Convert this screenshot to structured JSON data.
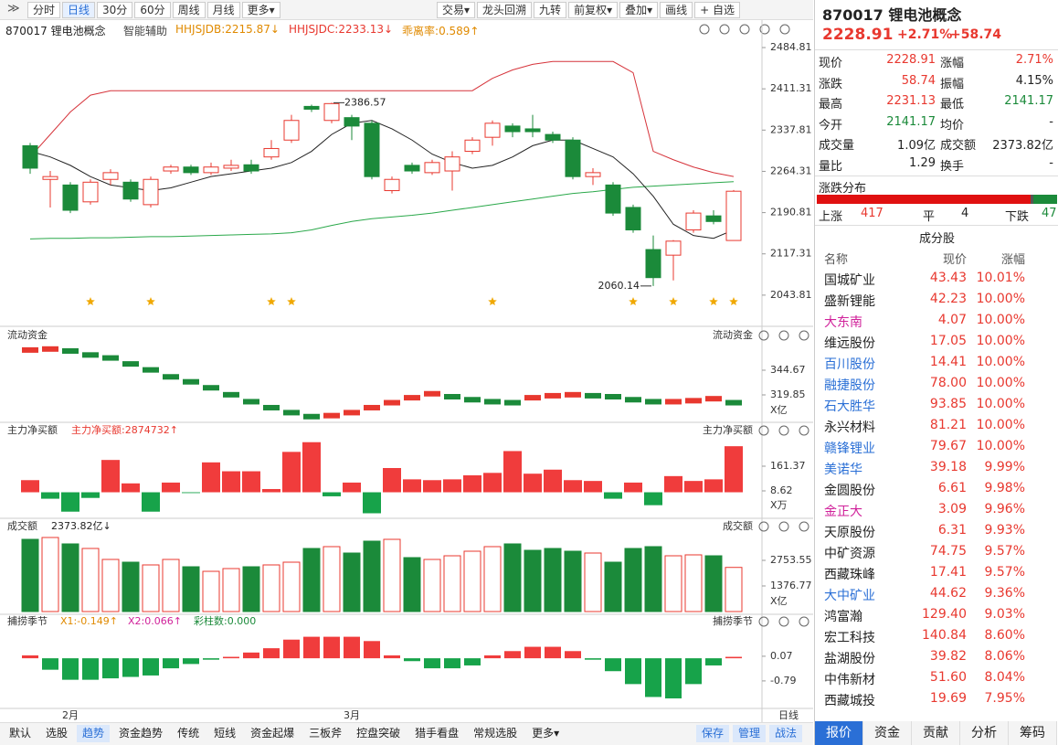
{
  "toolbar": {
    "tabs": [
      "分时",
      "日线",
      "30分",
      "60分",
      "周线",
      "月线",
      "更多▾"
    ],
    "active": 1,
    "right": [
      "交易▾",
      "龙头回溯",
      "九转",
      "前复权▾",
      "叠加▾",
      "画线",
      "+ 自选"
    ]
  },
  "info": {
    "name": "870017 锂电池概念",
    "assist": "智能辅助",
    "indicators": [
      {
        "text": "HHJSJDB:2215.87↓",
        "color": "#e08a00"
      },
      {
        "text": "HHJSJDC:2233.13↓",
        "color": "#e8382f"
      },
      {
        "text": "乖离率:0.589↑",
        "color": "#e08a00"
      }
    ]
  },
  "main": {
    "type": "candlestick",
    "ylim": [
      1991.5,
      2504.4
    ],
    "yticks": [
      2484.81,
      2411.31,
      2337.81,
      2264.31,
      2190.81,
      2117.31,
      2043.81
    ],
    "open": [
      2310,
      2250,
      2240,
      2210,
      2250,
      2245,
      2205,
      2265,
      2272,
      2262,
      2270,
      2276,
      2290,
      2320,
      2380,
      2355,
      2360,
      2350,
      2230,
      2275,
      2262,
      2265,
      2300,
      2325,
      2345,
      2340,
      2330,
      2320,
      2255,
      2240,
      2200,
      2125,
      2115,
      2160,
      2185,
      2141.17
    ],
    "high": [
      2315,
      2265,
      2245,
      2250,
      2268,
      2250,
      2255,
      2276,
      2276,
      2280,
      2285,
      2285,
      2320,
      2365,
      2383,
      2386.57,
      2365,
      2355,
      2255,
      2280,
      2285,
      2300,
      2325,
      2355,
      2350,
      2365,
      2335,
      2325,
      2270,
      2245,
      2205,
      2150,
      2142,
      2195,
      2195,
      2231.13
    ],
    "low": [
      2260,
      2200,
      2190,
      2205,
      2240,
      2210,
      2200,
      2260,
      2258,
      2258,
      2265,
      2260,
      2285,
      2315,
      2370,
      2350,
      2320,
      2250,
      2225,
      2260,
      2258,
      2230,
      2295,
      2310,
      2325,
      2325,
      2315,
      2250,
      2240,
      2185,
      2155,
      2060.14,
      2070,
      2155,
      2170,
      2141.17
    ],
    "close": [
      2270,
      2255,
      2195,
      2245,
      2262,
      2215,
      2250,
      2272,
      2262,
      2272,
      2275,
      2265,
      2305,
      2355,
      2375,
      2385,
      2345,
      2255,
      2250,
      2265,
      2280,
      2290,
      2320,
      2350,
      2335,
      2335,
      2320,
      2255,
      2262,
      2190,
      2160,
      2075,
      2140,
      2190,
      2175,
      2228.91
    ],
    "ma": [
      2300,
      2290,
      2275,
      2255,
      2240,
      2235,
      2230,
      2235,
      2245,
      2255,
      2260,
      2265,
      2270,
      2280,
      2300,
      2330,
      2350,
      2355,
      2340,
      2320,
      2295,
      2280,
      2270,
      2275,
      2290,
      2310,
      2320,
      2320,
      2305,
      2290,
      2260,
      2220,
      2170,
      2150,
      2145,
      2160
    ],
    "upper": [
      2290,
      2330,
      2370,
      2400,
      2408,
      2408,
      2408,
      2408,
      2408,
      2408,
      2408,
      2408,
      2408,
      2408,
      2408,
      2408,
      2408,
      2408,
      2408,
      2408,
      2408,
      2408,
      2408,
      2430,
      2445,
      2455,
      2460,
      2460,
      2460,
      2460,
      2440,
      2300,
      2285,
      2272,
      2262,
      2255
    ],
    "lower": [
      2144,
      2145,
      2145,
      2146,
      2146,
      2147,
      2148,
      2148,
      2149,
      2150,
      2151,
      2152,
      2153,
      2155,
      2160,
      2168,
      2175,
      2180,
      2183,
      2186,
      2190,
      2195,
      2200,
      2205,
      2210,
      2215,
      2220,
      2225,
      2228,
      2232,
      2236,
      2238,
      2240,
      2242,
      2244,
      2246
    ],
    "annotations": [
      {
        "index": 15,
        "text": "2386.57"
      },
      {
        "index": 31,
        "text": "2060.14"
      }
    ]
  },
  "flow": {
    "title": "流动资金",
    "right_title": "流动资金",
    "unit": "X亿",
    "ylim": [
      294.1,
      369.5
    ],
    "yticks": [
      344.67,
      319.85
    ],
    "values": [
      365,
      366,
      364,
      360,
      357,
      351,
      345,
      338,
      333,
      327,
      320,
      313,
      307,
      302,
      298,
      299,
      302,
      307,
      312,
      317,
      321,
      318,
      315,
      313,
      312,
      317,
      319,
      320,
      319,
      318,
      315,
      313,
      313,
      314,
      316,
      312
    ]
  },
  "netbuy": {
    "title": "主力净买额",
    "value_label": "主力净买额:2874732↑",
    "right_title": "主力净买额",
    "unit": "X万",
    "ylim": [
      -138.5,
      331.1
    ],
    "yticks": [
      161.37,
      8.62
    ],
    "values": [
      75,
      -40,
      -120,
      -35,
      200,
      55,
      -120,
      60,
      -5,
      185,
      130,
      130,
      20,
      250,
      310,
      -25,
      60,
      -130,
      150,
      80,
      75,
      80,
      105,
      120,
      255,
      115,
      140,
      75,
      70,
      -40,
      60,
      -80,
      100,
      70,
      80,
      285
    ]
  },
  "turnover": {
    "title": "成交额",
    "value_label": "2373.82亿↓",
    "right_title": "成交额",
    "unit": "X亿",
    "ylim": [
      0,
      4130.3
    ],
    "yticks": [
      2753.55,
      1376.77
    ],
    "values": [
      3884,
      3983,
      3639,
      3393,
      2803,
      2655,
      2508,
      2803,
      2409,
      2163,
      2311,
      2409,
      2508,
      2655,
      3393,
      3491,
      3147,
      3786,
      3884,
      2901,
      2803,
      2999,
      3245,
      3491,
      3639,
      3294,
      3393,
      3245,
      3147,
      2655,
      3393,
      3491,
      2999,
      3049,
      2999,
      2373.82
    ]
  },
  "season": {
    "title": "捕捞季节",
    "x1": "X1:-0.149↑",
    "x2": "X2:0.066↑",
    "bars": "彩柱数:0.000",
    "right_title": "捕捞季节",
    "ylim": [
      -1.59,
      0.96
    ],
    "yticks": [
      0.07,
      -0.79
    ],
    "values": [
      0.1,
      -0.4,
      -0.75,
      -0.75,
      -0.7,
      -0.65,
      -0.6,
      -0.35,
      -0.2,
      -0.05,
      0.05,
      0.2,
      0.35,
      0.65,
      0.75,
      0.75,
      0.75,
      0.6,
      0.1,
      -0.1,
      -0.35,
      -0.35,
      -0.25,
      0.1,
      0.25,
      0.4,
      0.4,
      0.25,
      -0.05,
      -0.45,
      -0.9,
      -1.35,
      -1.4,
      -0.9,
      -0.25,
      0.05
    ]
  },
  "xaxis": {
    "labels": [
      {
        "index": 2,
        "text": "2月"
      },
      {
        "index": 16,
        "text": "3月"
      }
    ],
    "period": "日线"
  },
  "bottom_bar": {
    "items": [
      "默认",
      "选股",
      "趋势",
      "资金趋势",
      "传统",
      "短线",
      "资金起爆",
      "三板斧",
      "控盘突破",
      "猎手看盘",
      "常规选股",
      "更多▾"
    ],
    "active": 2,
    "right": [
      "保存",
      "管理",
      "战法"
    ]
  },
  "quote": {
    "title": "870017 锂电池概念",
    "price": "2228.91",
    "pct": "+2.71%",
    "chg": "+58.74",
    "rows": [
      [
        {
          "label": "现价",
          "value": "2228.91",
          "color": "#e8382f"
        },
        {
          "label": "涨幅",
          "value": "2.71%",
          "color": "#e8382f"
        }
      ],
      [
        {
          "label": "涨跌",
          "value": "58.74",
          "color": "#e8382f"
        },
        {
          "label": "振幅",
          "value": "4.15%",
          "color": "#222"
        }
      ],
      [
        {
          "label": "最高",
          "value": "2231.13",
          "color": "#e8382f"
        },
        {
          "label": "最低",
          "value": "2141.17",
          "color": "#1b8a3a"
        }
      ],
      [
        {
          "label": "今开",
          "value": "2141.17",
          "color": "#1b8a3a"
        },
        {
          "label": "均价",
          "value": "-",
          "color": "#222"
        }
      ],
      [
        {
          "label": "成交量",
          "value": "1.09亿",
          "color": "#222"
        },
        {
          "label": "成交额",
          "value": "2373.82亿",
          "color": "#222"
        }
      ],
      [
        {
          "label": "量比",
          "value": "1.29",
          "color": "#222"
        },
        {
          "label": "换手",
          "value": "-",
          "color": "#222"
        }
      ]
    ]
  },
  "distribution": {
    "title": "涨跌分布",
    "up_label": "上涨",
    "up": 417,
    "flat_label": "平",
    "flat": 4,
    "down_label": "下跌",
    "down": 47
  },
  "constituents": {
    "title": "成分股",
    "columns": [
      "名称",
      "现价",
      "涨幅"
    ],
    "rows": [
      {
        "name": "国城矿业",
        "price": "43.43",
        "change": "10.01%",
        "color": "#222"
      },
      {
        "name": "盛新锂能",
        "price": "42.23",
        "change": "10.00%",
        "color": "#222"
      },
      {
        "name": "大东南",
        "price": "4.07",
        "change": "10.00%",
        "color": "#d0219a"
      },
      {
        "name": "维远股份",
        "price": "17.05",
        "change": "10.00%",
        "color": "#222"
      },
      {
        "name": "百川股份",
        "price": "14.41",
        "change": "10.00%",
        "color": "#2a6fd6"
      },
      {
        "name": "融捷股份",
        "price": "78.00",
        "change": "10.00%",
        "color": "#2a6fd6"
      },
      {
        "name": "石大胜华",
        "price": "93.85",
        "change": "10.00%",
        "color": "#2a6fd6"
      },
      {
        "name": "永兴材料",
        "price": "81.21",
        "change": "10.00%",
        "color": "#222"
      },
      {
        "name": "赣锋锂业",
        "price": "79.67",
        "change": "10.00%",
        "color": "#2a6fd6"
      },
      {
        "name": "美诺华",
        "price": "39.18",
        "change": "9.99%",
        "color": "#2a6fd6"
      },
      {
        "name": "金圆股份",
        "price": "6.61",
        "change": "9.98%",
        "color": "#222"
      },
      {
        "name": "金正大",
        "price": "3.09",
        "change": "9.96%",
        "color": "#d0219a"
      },
      {
        "name": "天原股份",
        "price": "6.31",
        "change": "9.93%",
        "color": "#222"
      },
      {
        "name": "中矿资源",
        "price": "74.75",
        "change": "9.57%",
        "color": "#222"
      },
      {
        "name": "西藏珠峰",
        "price": "17.41",
        "change": "9.57%",
        "color": "#222"
      },
      {
        "name": "大中矿业",
        "price": "44.62",
        "change": "9.36%",
        "color": "#2a6fd6"
      },
      {
        "name": "鸿富瀚",
        "price": "129.40",
        "change": "9.03%",
        "color": "#222"
      },
      {
        "name": "宏工科技",
        "price": "140.84",
        "change": "8.60%",
        "color": "#222"
      },
      {
        "name": "盐湖股份",
        "price": "39.82",
        "change": "8.06%",
        "color": "#222"
      },
      {
        "name": "中伟新材",
        "price": "51.60",
        "change": "8.04%",
        "color": "#222"
      },
      {
        "name": "西藏城投",
        "price": "19.69",
        "change": "7.95%",
        "color": "#222"
      }
    ]
  },
  "right_tabs": {
    "items": [
      "报价",
      "资金",
      "贡献",
      "分析",
      "筹码"
    ],
    "active": 0
  }
}
